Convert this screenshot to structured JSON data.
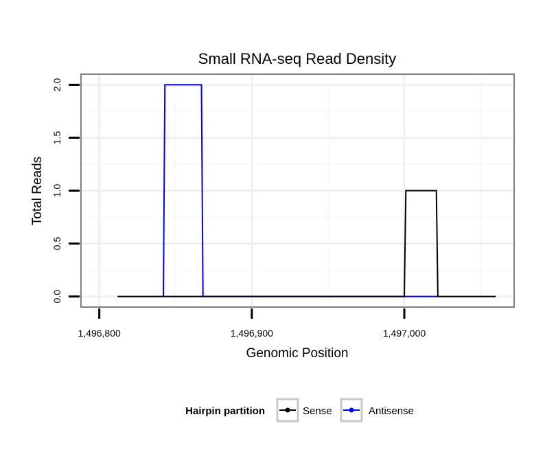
{
  "chart_data": {
    "type": "line",
    "title": "Small RNA-seq Read Density",
    "xlabel": "Genomic Position",
    "ylabel": "Total Reads",
    "xlim": [
      1496788,
      1497072
    ],
    "ylim": [
      -0.1,
      2.1
    ],
    "x_ticks": [
      1496800,
      1496900,
      1497000
    ],
    "x_tick_labels": [
      "1,496,800",
      "1,496,900",
      "1,497,000"
    ],
    "y_ticks": [
      0.0,
      0.5,
      1.0,
      1.5,
      2.0
    ],
    "y_tick_labels": [
      "0.0",
      "0.5",
      "1.0",
      "1.5",
      "2.0"
    ],
    "grid": true,
    "legend": {
      "title": "Hairpin partition",
      "position": "bottom"
    },
    "series": [
      {
        "name": "Sense",
        "color": "#000000",
        "x": [
          1496812,
          1497000,
          1497001,
          1497021,
          1497022,
          1497060
        ],
        "y": [
          0,
          0,
          1,
          1,
          0,
          0
        ]
      },
      {
        "name": "Antisense",
        "color": "#0000ff",
        "x": [
          1496842,
          1496843,
          1496867,
          1496868,
          1497000,
          1497022
        ],
        "y": [
          0,
          2,
          2,
          0,
          0,
          0
        ]
      }
    ]
  }
}
